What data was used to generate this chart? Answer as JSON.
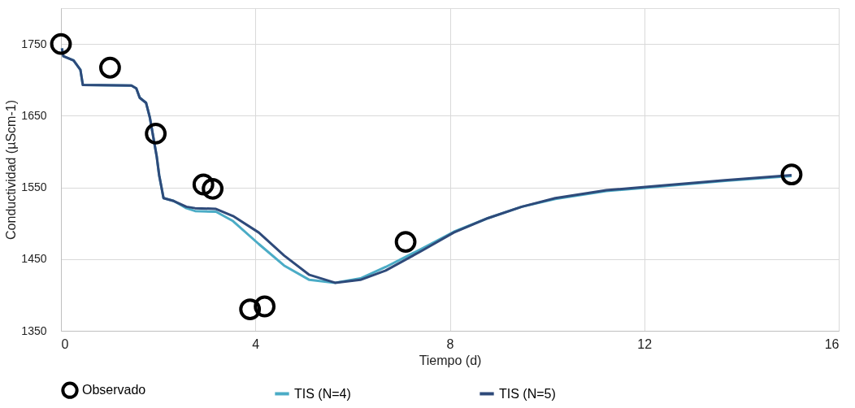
{
  "chart_data": {
    "type": "line",
    "xlabel": "Tiempo (d)",
    "ylabel": "Conductividad (µScm-1)",
    "xlim": [
      0,
      16
    ],
    "xticks": [
      0,
      4,
      8,
      12,
      16
    ],
    "ylim": [
      1350,
      1800
    ],
    "yticks": [
      1350,
      1450,
      1550,
      1650,
      1750
    ],
    "grid": true,
    "legend": "bottom",
    "line_style": "solid",
    "series": [
      {
        "name": "Observado",
        "type": "scatter",
        "marker": "circle",
        "color": "#000000",
        "x": [
          0,
          1.01,
          1.95,
          2.93,
          3.12,
          3.89,
          4.19,
          7.09,
          15.03
        ],
        "values": [
          1750,
          1717,
          1625,
          1554,
          1548,
          1380,
          1384,
          1474,
          1568
        ]
      },
      {
        "name": "TIS (N=4)",
        "color": "#4bacc6",
        "x": [
          0.02,
          0.05,
          0.26,
          0.4,
          0.45,
          1.45,
          1.55,
          1.62,
          1.75,
          1.83,
          1.97,
          2.02,
          2.11,
          2.32,
          2.58,
          2.76,
          3.19,
          3.54,
          4.07,
          4.59,
          5.11,
          5.64,
          6.16,
          6.68,
          7.38,
          8.08,
          8.78,
          9.48,
          10.17,
          11.22,
          12.27,
          13.66,
          15.03
        ],
        "values": [
          1744,
          1733,
          1727,
          1714,
          1693,
          1692,
          1688,
          1675,
          1668,
          1647,
          1593,
          1567,
          1535,
          1531,
          1521,
          1517,
          1516,
          1503,
          1471,
          1441,
          1421,
          1417,
          1423,
          1439,
          1463,
          1488,
          1507,
          1523,
          1534,
          1545,
          1551,
          1559,
          1566
        ]
      },
      {
        "name": "TIS (N=5)",
        "color": "#2e4a7a",
        "x": [
          0.02,
          0.05,
          0.26,
          0.4,
          0.45,
          1.45,
          1.55,
          1.62,
          1.75,
          1.83,
          1.97,
          2.02,
          2.11,
          2.32,
          2.58,
          2.76,
          3.19,
          3.54,
          4.07,
          4.59,
          5.11,
          5.64,
          6.16,
          6.68,
          7.38,
          8.08,
          8.78,
          9.48,
          10.17,
          11.22,
          12.27,
          13.66,
          15.03
        ],
        "values": [
          1744,
          1733,
          1727,
          1714,
          1693,
          1692,
          1688,
          1675,
          1668,
          1647,
          1593,
          1567,
          1535,
          1531,
          1523,
          1521,
          1520,
          1510,
          1487,
          1455,
          1428,
          1417,
          1421,
          1434,
          1460,
          1487,
          1507,
          1523,
          1535,
          1546,
          1552,
          1560,
          1567
        ]
      }
    ]
  }
}
